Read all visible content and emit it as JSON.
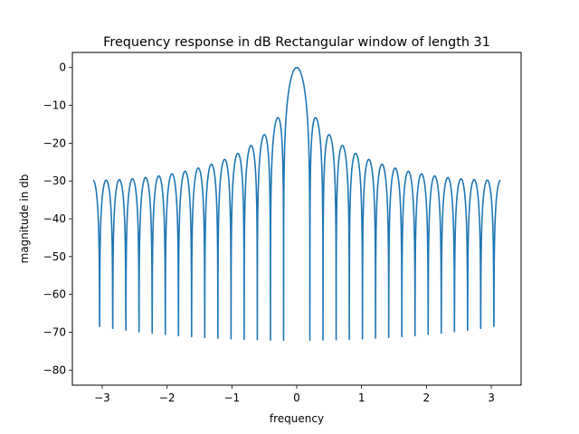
{
  "chart_data": {
    "type": "line",
    "title": "Frequency response in dB Rectangular window of length 31",
    "xlabel": "frequency",
    "ylabel": "magnitude in db",
    "xlim": [
      -3.46,
      3.46
    ],
    "ylim": [
      -84,
      4
    ],
    "x_ticks": [
      -3,
      -2,
      -1,
      0,
      1,
      2,
      3
    ],
    "x_tick_labels": [
      "−3",
      "−2",
      "−1",
      "0",
      "1",
      "2",
      "3"
    ],
    "y_ticks": [
      0,
      -10,
      -20,
      -30,
      -40,
      -50,
      -60,
      -70,
      -80
    ],
    "y_tick_labels": [
      "0",
      "−10",
      "−20",
      "−30",
      "−40",
      "−50",
      "−60",
      "−70",
      "−80"
    ],
    "grid": false,
    "legend": "none",
    "window_length": 31,
    "x_range": [
      -3.1416,
      3.1416
    ],
    "floor_db": -30,
    "line_color": "#1f77b4"
  }
}
